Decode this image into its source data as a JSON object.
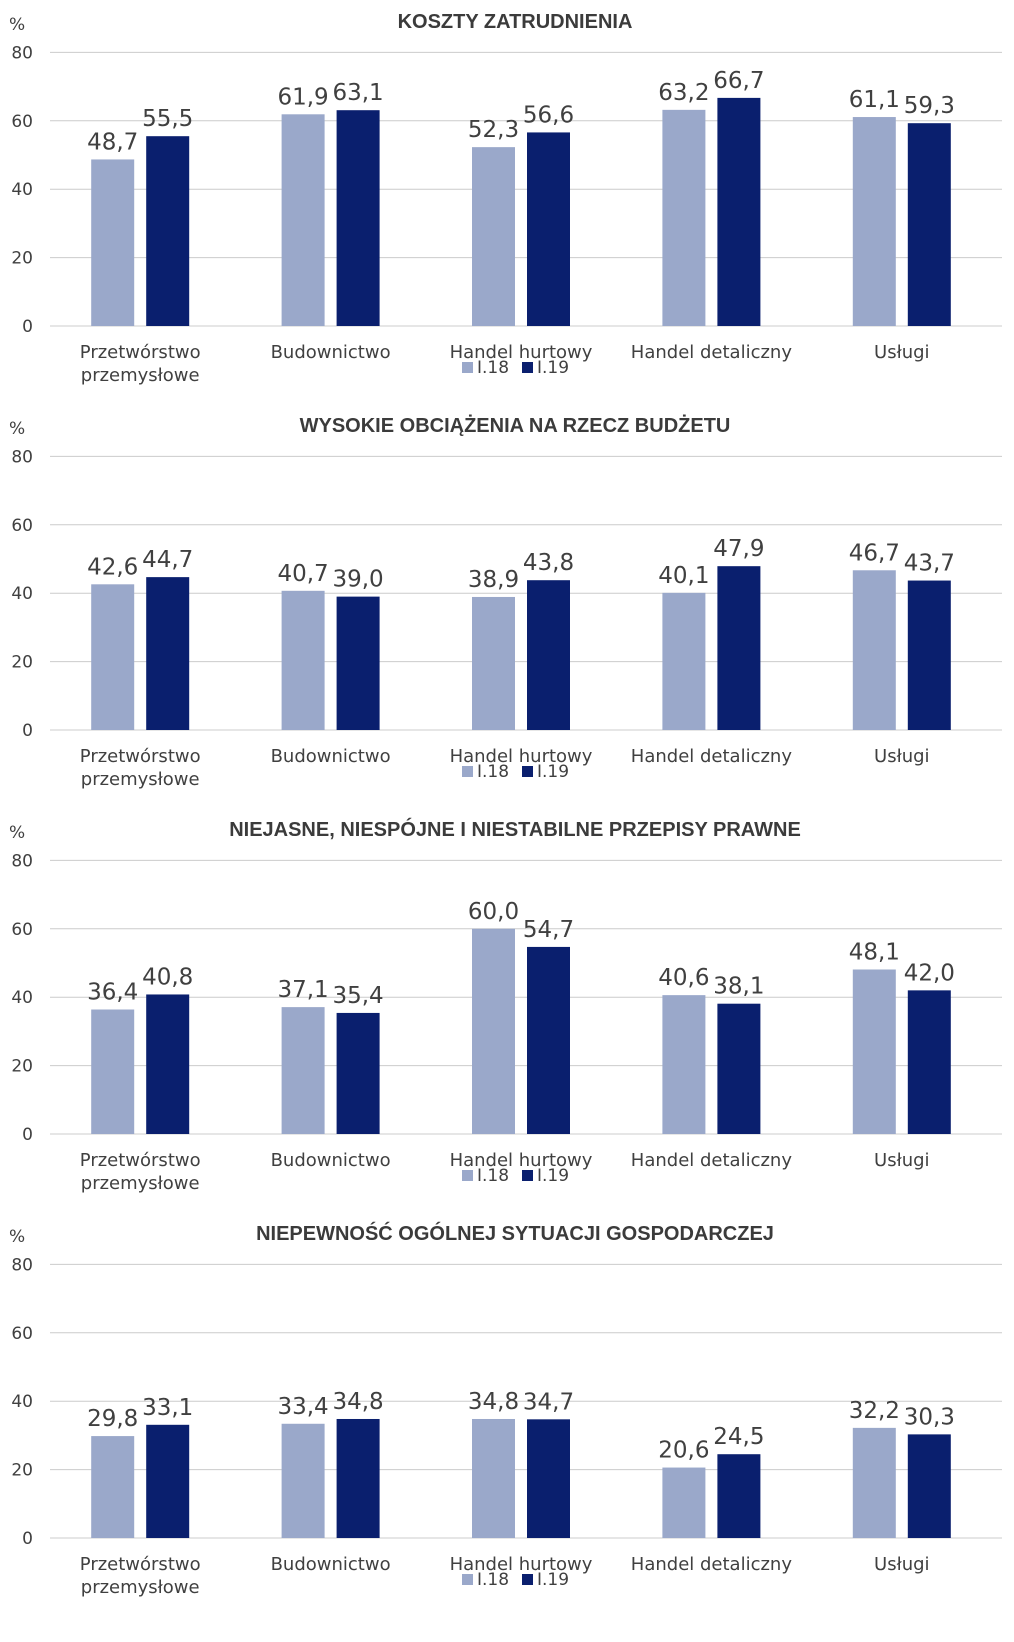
{
  "colors": {
    "series_1": "#9aa8ca",
    "series_2": "#0a1f6e",
    "gridline": "#cccccc",
    "text": "#404040"
  },
  "chart_data": [
    {
      "type": "bar",
      "title": "KOSZTY ZATRUDNIENIA",
      "ylabel": "%",
      "ylim": [
        0,
        80
      ],
      "yticks": [
        0,
        20,
        40,
        60,
        80
      ],
      "grid": true,
      "legend_position": "bottom-center",
      "categories": [
        "Przetwórstwo przemysłowe",
        "Budownictwo",
        "Handel hurtowy",
        "Handel detaliczny",
        "Usługi"
      ],
      "series": [
        {
          "name": "I.18",
          "values": [
            48.7,
            61.9,
            52.3,
            63.2,
            61.1
          ],
          "labels": [
            "48,7",
            "61,9",
            "52,3",
            "63,2",
            "61,1"
          ]
        },
        {
          "name": "I.19",
          "values": [
            55.5,
            63.1,
            56.6,
            66.7,
            59.3
          ],
          "labels": [
            "55,5",
            "63,1",
            "56,6",
            "66,7",
            "59,3"
          ]
        }
      ]
    },
    {
      "type": "bar",
      "title": "WYSOKIE OBCIĄŻENIA NA RZECZ BUDŻETU",
      "ylabel": "%",
      "ylim": [
        0,
        80
      ],
      "yticks": [
        0,
        20,
        40,
        60,
        80
      ],
      "grid": true,
      "legend_position": "bottom-center",
      "categories": [
        "Przetwórstwo przemysłowe",
        "Budownictwo",
        "Handel hurtowy",
        "Handel detaliczny",
        "Usługi"
      ],
      "series": [
        {
          "name": "I.18",
          "values": [
            42.6,
            40.7,
            38.9,
            40.1,
            46.7
          ],
          "labels": [
            "42,6",
            "40,7",
            "38,9",
            "40,1",
            "46,7"
          ]
        },
        {
          "name": "I.19",
          "values": [
            44.7,
            39.0,
            43.8,
            47.9,
            43.7
          ],
          "labels": [
            "44,7",
            "39,0",
            "43,8",
            "47,9",
            "43,7"
          ]
        }
      ]
    },
    {
      "type": "bar",
      "title": "NIEJASNE, NIESPÓJNE I NIESTABILNE PRZEPISY PRAWNE",
      "ylabel": "%",
      "ylim": [
        0,
        80
      ],
      "yticks": [
        0,
        20,
        40,
        60,
        80
      ],
      "grid": true,
      "legend_position": "bottom-center",
      "categories": [
        "Przetwórstwo przemysłowe",
        "Budownictwo",
        "Handel hurtowy",
        "Handel detaliczny",
        "Usługi"
      ],
      "series": [
        {
          "name": "I.18",
          "values": [
            36.4,
            37.1,
            60.0,
            40.6,
            48.1
          ],
          "labels": [
            "36,4",
            "37,1",
            "60,0",
            "40,6",
            "48,1"
          ]
        },
        {
          "name": "I.19",
          "values": [
            40.8,
            35.4,
            54.7,
            38.1,
            42.0
          ],
          "labels": [
            "40,8",
            "35,4",
            "54,7",
            "38,1",
            "42,0"
          ]
        }
      ]
    },
    {
      "type": "bar",
      "title": "NIEPEWNOŚĆ OGÓLNEJ SYTUACJI GOSPODARCZEJ",
      "ylabel": "%",
      "ylim": [
        0,
        80
      ],
      "yticks": [
        0,
        20,
        40,
        60,
        80
      ],
      "grid": true,
      "legend_position": "bottom-center",
      "categories": [
        "Przetwórstwo przemysłowe",
        "Budownictwo",
        "Handel hurtowy",
        "Handel detaliczny",
        "Usługi"
      ],
      "series": [
        {
          "name": "I.18",
          "values": [
            29.8,
            33.4,
            34.8,
            20.6,
            32.2
          ],
          "labels": [
            "29,8",
            "33,4",
            "34,8",
            "20,6",
            "32,2"
          ]
        },
        {
          "name": "I.19",
          "values": [
            33.1,
            34.8,
            34.7,
            24.5,
            30.3
          ],
          "labels": [
            "33,1",
            "34,8",
            "34,7",
            "24,5",
            "30,3"
          ]
        }
      ]
    }
  ]
}
